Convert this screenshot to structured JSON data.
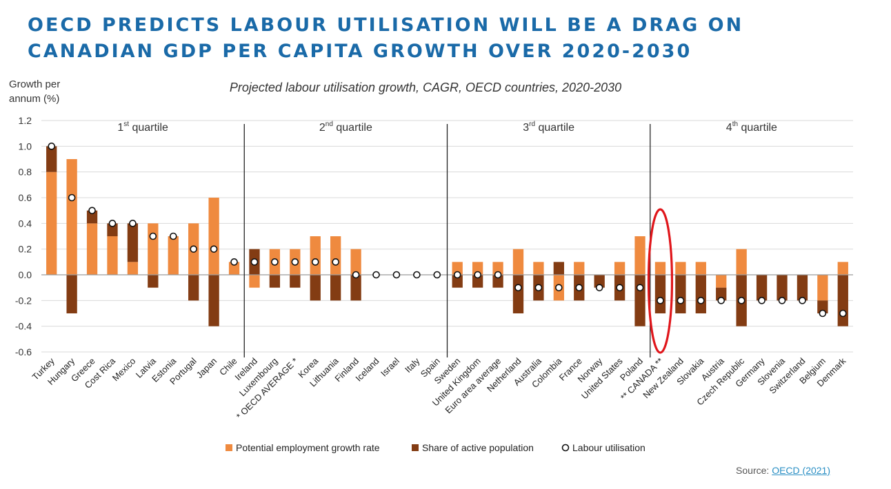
{
  "title_lines": [
    "OECD PREDICTS LABOUR UTILISATION WILL BE A DRAG ON",
    "CANADIAN GDP PER CAPITA GROWTH OVER 2020-2030"
  ],
  "source": {
    "label": "Source:",
    "link": "OECD (2021)"
  },
  "colors": {
    "potential": "#ef8a3f",
    "share": "#833c13",
    "highlight": "#e0161b",
    "axis": "#333333",
    "grid": "#d9d9d9",
    "title": "#1a6aa8"
  },
  "chart_data": {
    "type": "bar",
    "stacked": true,
    "title": "Projected labour utilisation growth, CAGR, OECD countries, 2020-2030",
    "ylabel": [
      "Growth per",
      "annum (%)"
    ],
    "ylim": [
      -0.6,
      1.2
    ],
    "yticks": [
      "1.2",
      "1.0",
      "0.8",
      "0.6",
      "0.4",
      "0.2",
      "0.0",
      "-0.2",
      "-0.4",
      "-0.6"
    ],
    "grid": true,
    "legend_position": "bottom",
    "categories": [
      "Turkey",
      "Hungary",
      "Greece",
      "Cost Rica",
      "Mexico",
      "Latvia",
      "Estonia",
      "Portugal",
      "Japan",
      "Chile",
      "Ireland",
      "Luxembourg",
      "* OECD AVERAGE *",
      "Korea",
      "Lithuania",
      "Finland",
      "Iceland",
      "Israel",
      "Italy",
      "Spain",
      "Sweden",
      "United Kingdom",
      "Euro area average",
      "Netherland",
      "Australia",
      "Colombia",
      "France",
      "Norway",
      "United States",
      "Poland",
      "** CANADA **",
      "New Zealand",
      "Slovakia",
      "Austria",
      "Czech Republic",
      "Germany",
      "Slovenia",
      "Switzerland",
      "Belgium",
      "Denmark"
    ],
    "highlight_category": "** CANADA **",
    "series": [
      {
        "name": "Potential employment growth rate",
        "kind": "bar",
        "values": [
          0.8,
          0.9,
          0.4,
          0.3,
          0.1,
          0.4,
          0.3,
          0.4,
          0.6,
          0.1,
          -0.1,
          0.2,
          0.2,
          0.3,
          0.3,
          0.2,
          0,
          0,
          0,
          0,
          0.1,
          0.1,
          0.1,
          0.2,
          0.1,
          -0.2,
          0.1,
          0,
          0.1,
          0.3,
          0.1,
          0.1,
          0.1,
          -0.1,
          0.2,
          0,
          0,
          0,
          -0.2,
          0.1
        ]
      },
      {
        "name": "Share of active population",
        "kind": "bar",
        "values": [
          0.2,
          -0.3,
          0.1,
          0.1,
          0.3,
          -0.1,
          0,
          -0.2,
          -0.4,
          0,
          0.2,
          -0.1,
          -0.1,
          -0.2,
          -0.2,
          -0.2,
          0,
          0,
          0,
          0,
          -0.1,
          -0.1,
          -0.1,
          -0.3,
          -0.2,
          0.1,
          -0.2,
          -0.1,
          -0.2,
          -0.4,
          -0.3,
          -0.3,
          -0.3,
          -0.1,
          -0.4,
          -0.2,
          -0.2,
          -0.2,
          -0.1,
          -0.4
        ]
      },
      {
        "name": "Labour utilisation",
        "kind": "marker",
        "values": [
          1.0,
          0.6,
          0.5,
          0.4,
          0.4,
          0.3,
          0.3,
          0.2,
          0.2,
          0.1,
          0.1,
          0.1,
          0.1,
          0.1,
          0.1,
          0.0,
          0.0,
          0.0,
          0.0,
          0.0,
          0.0,
          0.0,
          0.0,
          -0.1,
          -0.1,
          -0.1,
          -0.1,
          -0.1,
          -0.1,
          -0.1,
          -0.2,
          -0.2,
          -0.2,
          -0.2,
          -0.2,
          -0.2,
          -0.2,
          -0.2,
          -0.3,
          -0.3
        ]
      }
    ],
    "quartiles": [
      {
        "prefix": "1",
        "sup": "st",
        "suffix": " quartile",
        "start": 0,
        "end": 9
      },
      {
        "prefix": "2",
        "sup": "nd",
        "suffix": " quartile",
        "start": 10,
        "end": 19
      },
      {
        "prefix": "3",
        "sup": "rd",
        "suffix": " quartile",
        "start": 20,
        "end": 29
      },
      {
        "prefix": "4",
        "sup": "th",
        "suffix": " quartile",
        "start": 30,
        "end": 39
      }
    ]
  }
}
